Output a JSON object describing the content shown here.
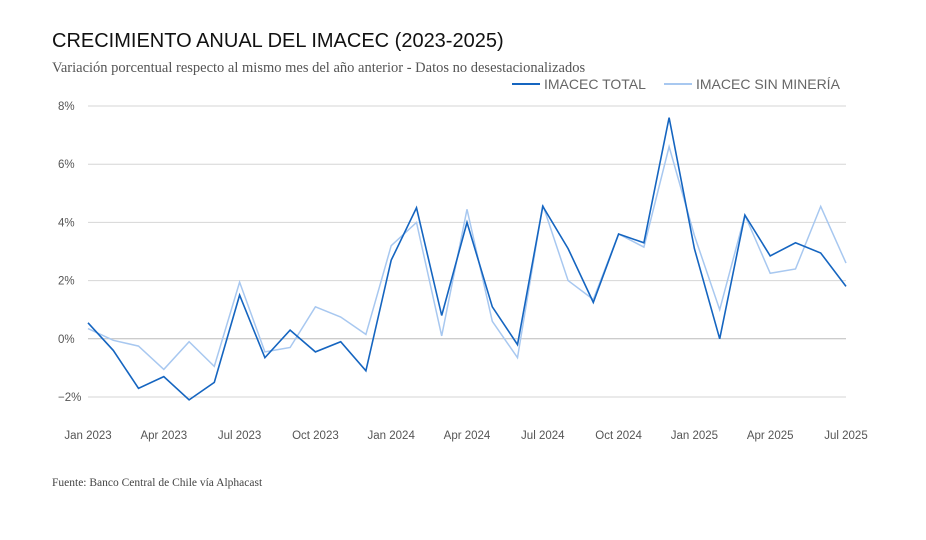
{
  "title": "CRECIMIENTO ANUAL DEL IMACEC (2023-2025)",
  "subtitle": "Variación porcentual respecto al mismo mes del año anterior - Datos no desestacionalizados",
  "source": "Fuente: Banco Central de Chile vía Alphacast",
  "chart_data": {
    "type": "line",
    "title": "CRECIMIENTO ANUAL DEL IMACEC (2023-2025)",
    "ylim": [
      -3,
      8
    ],
    "y_ticks": [
      -2,
      0,
      2,
      4,
      6,
      8
    ],
    "y_tick_labels": [
      "−2%",
      "0%",
      "2%",
      "4%",
      "6%",
      "8%"
    ],
    "grid": true,
    "legend_position": "top-right",
    "x": [
      "2023-01",
      "2023-02",
      "2023-03",
      "2023-04",
      "2023-05",
      "2023-06",
      "2023-07",
      "2023-08",
      "2023-09",
      "2023-10",
      "2023-11",
      "2023-12",
      "2024-01",
      "2024-02",
      "2024-03",
      "2024-04",
      "2024-05",
      "2024-06",
      "2024-07",
      "2024-08",
      "2024-09",
      "2024-10",
      "2024-11",
      "2024-12",
      "2025-01",
      "2025-02",
      "2025-03",
      "2025-04",
      "2025-05",
      "2025-06",
      "2025-07"
    ],
    "x_tick_labels": [
      "Jan 2023",
      "Apr 2023",
      "Jul 2023",
      "Oct 2023",
      "Jan 2024",
      "Apr 2024",
      "Jul 2024",
      "Oct 2024",
      "Jan 2025",
      "Apr 2025",
      "Jul 2025"
    ],
    "x_tick_positions": [
      "2023-01",
      "2023-04",
      "2023-07",
      "2023-10",
      "2024-01",
      "2024-04",
      "2024-07",
      "2024-10",
      "2025-01",
      "2025-04",
      "2025-07"
    ],
    "series": [
      {
        "name": "IMACEC TOTAL",
        "color": "#1565c0",
        "values": [
          0.55,
          -0.4,
          -1.7,
          -1.3,
          -2.1,
          -1.5,
          1.5,
          -0.65,
          0.3,
          -0.45,
          -0.1,
          -1.1,
          2.7,
          4.5,
          0.8,
          4.0,
          1.1,
          -0.2,
          4.55,
          3.1,
          1.25,
          3.6,
          3.3,
          7.6,
          3.1,
          0.0,
          4.25,
          2.85,
          3.3,
          2.95,
          1.8
        ]
      },
      {
        "name": "IMACEC SIN MINERÍA",
        "color": "#a8c8f0",
        "values": [
          0.35,
          -0.05,
          -0.25,
          -1.05,
          -0.1,
          -0.95,
          1.95,
          -0.45,
          -0.3,
          1.1,
          0.75,
          0.15,
          3.2,
          4.0,
          0.1,
          4.45,
          0.6,
          -0.65,
          4.6,
          2.0,
          1.35,
          3.6,
          3.15,
          6.6,
          3.55,
          1.0,
          4.25,
          2.25,
          2.4,
          4.55,
          2.6
        ]
      }
    ]
  }
}
